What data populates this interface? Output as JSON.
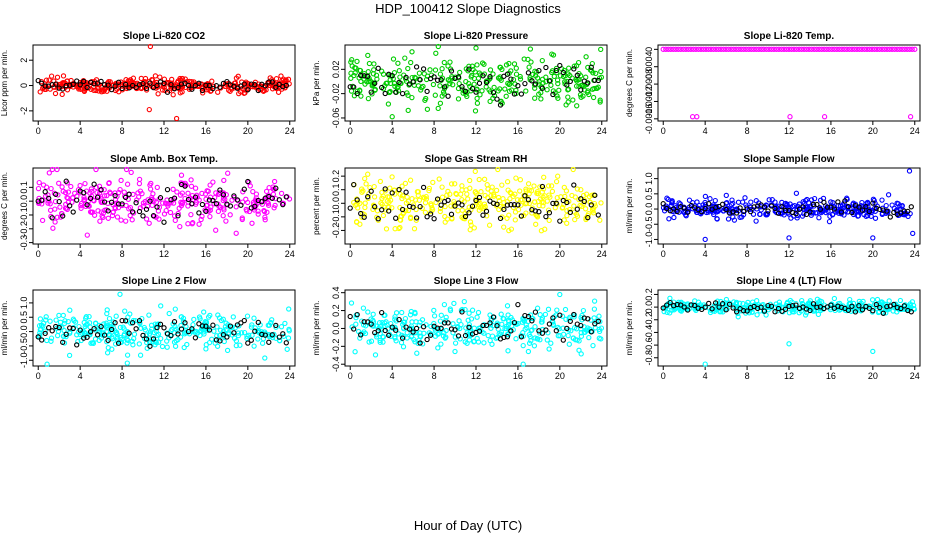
{
  "page": {
    "title": "HDP_100412  Slope Diagnostics",
    "xlabel": "Hour of Day (UTC)"
  },
  "chart_data": [
    {
      "type": "scatter",
      "title": "Slope Li-820 CO2",
      "ylabel": "Licor ppm per min.",
      "color": "#ff0000",
      "xlim": [
        -0.5,
        24.5
      ],
      "xticks": [
        0,
        4,
        8,
        12,
        16,
        20,
        24
      ],
      "ylim": [
        -2.8,
        3.2
      ],
      "yticks": [
        -2,
        0,
        2
      ],
      "yticklabels": [
        "-2",
        "0",
        "2"
      ],
      "spread": 0.28,
      "black_spread": 0.2,
      "outliers": [
        [
          10.7,
          3.1
        ],
        [
          10.6,
          -1.9
        ],
        [
          13.2,
          -2.6
        ]
      ]
    },
    {
      "type": "scatter",
      "title": "Slope Li-820 Pressure",
      "ylabel": "kPa per min.",
      "color": "#00cc00",
      "xlim": [
        -0.5,
        24.5
      ],
      "xticks": [
        0,
        4,
        8,
        12,
        16,
        20,
        24
      ],
      "ylim": [
        -0.065,
        0.06
      ],
      "yticks": [
        -0.06,
        -0.02,
        0.02
      ],
      "yticklabels": [
        "-0.06",
        "-0.02",
        "0.02"
      ],
      "spread": 0.018,
      "black_spread": 0.014,
      "outliers": [
        [
          4,
          -0.058
        ],
        [
          12,
          0.055
        ]
      ]
    },
    {
      "type": "scatter",
      "title": "Slope Li-820 Temp.",
      "ylabel": "degrees C per min.",
      "color": "#ff00ff",
      "xlim": [
        -0.5,
        24.5
      ],
      "xticks": [
        0,
        4,
        8,
        12,
        16,
        20,
        24
      ],
      "ylim": [
        -0.00165,
        0.0001
      ],
      "yticks": [
        -0.0016,
        -0.0012,
        -0.0008,
        -0.0004,
        0
      ],
      "yticklabels": [
        "-0.0016",
        "-0.0012",
        "-0.0008",
        "-0.0004",
        "0"
      ],
      "flat_value": 0,
      "outliers": [
        [
          2.8,
          -0.00155
        ],
        [
          3.2,
          -0.00155
        ],
        [
          12.1,
          -0.00155
        ],
        [
          15.4,
          -0.00155
        ],
        [
          23.6,
          -0.00155
        ]
      ]
    },
    {
      "type": "scatter",
      "title": "Slope Amb. Box Temp.",
      "ylabel": "degrees C per min.",
      "color": "#ff00ff",
      "xlim": [
        -0.5,
        24.5
      ],
      "xticks": [
        0,
        4,
        8,
        12,
        16,
        20,
        24
      ],
      "ylim": [
        -0.31,
        0.24
      ],
      "yticks": [
        -0.3,
        -0.2,
        -0.1,
        0,
        0.1
      ],
      "yticklabels": [
        "-0.3",
        "-0.2",
        "-0.1",
        "0.0",
        "0.1"
      ],
      "spread": 0.09,
      "black_spread": 0.07,
      "outliers": []
    },
    {
      "type": "scatter",
      "title": "Slope Gas Stream RH",
      "ylabel": "percent per min.",
      "color": "#ffff00",
      "xlim": [
        -0.5,
        24.5
      ],
      "xticks": [
        0,
        4,
        8,
        12,
        16,
        20,
        24
      ],
      "ylim": [
        -0.3,
        0.26
      ],
      "yticks": [
        -0.2,
        -0.1,
        0,
        0.1,
        0.2
      ],
      "yticklabels": [
        "-0.2",
        "-0.1",
        "0.0",
        "0.1",
        "0.2"
      ],
      "spread": 0.085,
      "black_spread": 0.065,
      "outliers": []
    },
    {
      "type": "scatter",
      "title": "Slope Sample Flow",
      "ylabel": "ml/min per min.",
      "color": "#0000ff",
      "xlim": [
        -0.5,
        24.5
      ],
      "xticks": [
        0,
        4,
        8,
        12,
        16,
        20,
        24
      ],
      "ylim": [
        -1.15,
        1.35
      ],
      "yticks": [
        -1,
        -0.5,
        0,
        0.5,
        1
      ],
      "yticklabels": [
        "-1.0",
        "-0.5",
        "0.0",
        "0.5",
        "1.0"
      ],
      "spread": 0.16,
      "black_spread": 0.1,
      "outliers": [
        [
          4,
          -1
        ],
        [
          12,
          -0.95
        ],
        [
          20,
          -0.95
        ],
        [
          23.5,
          1.25
        ],
        [
          23.8,
          -0.8
        ]
      ]
    },
    {
      "type": "scatter",
      "title": "Slope Line 2 Flow",
      "ylabel": "ml/min per min.",
      "color": "#00ffff",
      "xlim": [
        -0.5,
        24.5
      ],
      "xticks": [
        0,
        4,
        8,
        12,
        16,
        20,
        24
      ],
      "ylim": [
        -1.2,
        1.45
      ],
      "yticks": [
        -1,
        -0.5,
        0,
        0.5,
        1
      ],
      "yticklabels": [
        "-1.0",
        "-0.5",
        "0.0",
        "0.5",
        "1.0"
      ],
      "spread": 0.33,
      "black_spread": 0.22,
      "outliers": [
        [
          8.5,
          -1.1
        ],
        [
          7.8,
          1.3
        ]
      ]
    },
    {
      "type": "scatter",
      "title": "Slope Line 3 Flow",
      "ylabel": "ml/min per min.",
      "color": "#00ffff",
      "xlim": [
        -0.5,
        24.5
      ],
      "xticks": [
        0,
        4,
        8,
        12,
        16,
        20,
        24
      ],
      "ylim": [
        -0.42,
        0.43
      ],
      "yticks": [
        -0.4,
        -0.2,
        0,
        0.2,
        0.4
      ],
      "yticklabels": [
        "-0.4",
        "-0.2",
        "0.0",
        "0.2",
        "0.4"
      ],
      "spread": 0.11,
      "black_spread": 0.09,
      "outliers": [
        [
          20,
          0.38
        ],
        [
          16.5,
          -0.4
        ]
      ]
    },
    {
      "type": "scatter",
      "title": "Slope Line 4 (LT) Flow",
      "ylabel": "ml/min per min.",
      "color": "#00ffff",
      "xlim": [
        -0.5,
        24.5
      ],
      "xticks": [
        0,
        4,
        8,
        12,
        16,
        20,
        24
      ],
      "ylim": [
        -0.93,
        0.27
      ],
      "yticks": [
        -0.8,
        -0.6,
        -0.4,
        -0.2,
        0,
        0.2
      ],
      "yticklabels": [
        "-0.8",
        "-0.6",
        "-0.4",
        "-0.2",
        "0.0",
        "0.2"
      ],
      "spread": 0.05,
      "black_spread": 0.04,
      "outliers": [
        [
          4,
          -0.9
        ],
        [
          12,
          -0.58
        ],
        [
          20,
          -0.7
        ]
      ]
    }
  ]
}
